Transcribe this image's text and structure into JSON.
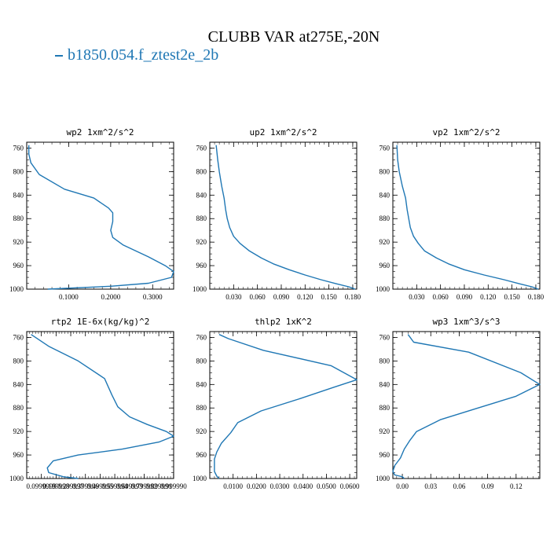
{
  "title": "CLUBB VAR at275E,-20N",
  "legend": {
    "label": "b1850.054.f_ztest2e_2b",
    "color": "#1f77b4"
  },
  "chart_data": [
    {
      "type": "line",
      "title": "wp2  1xm^2/s^2",
      "ylim": [
        1000,
        750
      ],
      "yticks": [
        "760",
        "800",
        "840",
        "880",
        "920",
        "960",
        "1000"
      ],
      "ytick_values": [
        760,
        800,
        840,
        880,
        920,
        960,
        1000
      ],
      "xlim": [
        0.0,
        0.35
      ],
      "xtick_values": [
        0.1,
        0.2,
        0.3
      ],
      "xticks": [
        "0.1000",
        "0.2000",
        "0.3000"
      ],
      "x": [
        0.005,
        0.005,
        0.01,
        0.03,
        0.09,
        0.16,
        0.195,
        0.205,
        0.205,
        0.2,
        0.205,
        0.23,
        0.29,
        0.33,
        0.35,
        0.345,
        0.29,
        0.2,
        0.05
      ],
      "y": [
        755,
        770,
        785,
        805,
        830,
        845,
        862,
        870,
        885,
        900,
        912,
        925,
        945,
        960,
        970,
        980,
        990,
        995,
        1000
      ],
      "color": "#1f77b4"
    },
    {
      "type": "line",
      "title": "up2  1xm^2/s^2",
      "ylim": [
        1000,
        750
      ],
      "yticks": [
        "760",
        "800",
        "840",
        "880",
        "920",
        "960",
        "1000"
      ],
      "ytick_values": [
        760,
        800,
        840,
        880,
        920,
        960,
        1000
      ],
      "xlim": [
        0.0,
        0.185
      ],
      "xtick_values": [
        0.03,
        0.06,
        0.09,
        0.12,
        0.15,
        0.18
      ],
      "xticks": [
        "0.030",
        "0.060",
        "0.090",
        "0.120",
        "0.150",
        "0.180"
      ],
      "x": [
        0.008,
        0.01,
        0.012,
        0.015,
        0.018,
        0.02,
        0.022,
        0.025,
        0.03,
        0.038,
        0.05,
        0.065,
        0.08,
        0.1,
        0.12,
        0.14,
        0.16,
        0.175,
        0.183
      ],
      "y": [
        755,
        780,
        800,
        825,
        845,
        865,
        880,
        895,
        910,
        922,
        935,
        947,
        957,
        967,
        976,
        984,
        991,
        996,
        1000
      ],
      "color": "#1f77b4"
    },
    {
      "type": "line",
      "title": "vp2  1xm^2/s^2",
      "ylim": [
        1000,
        750
      ],
      "yticks": [
        "760",
        "800",
        "840",
        "880",
        "920",
        "960",
        "1000"
      ],
      "ytick_values": [
        760,
        800,
        840,
        880,
        920,
        960,
        1000
      ],
      "xlim": [
        0.0,
        0.185
      ],
      "xtick_values": [
        0.03,
        0.06,
        0.09,
        0.12,
        0.15,
        0.18
      ],
      "xticks": [
        "0.030",
        "0.060",
        "0.090",
        "0.120",
        "0.150",
        "0.180"
      ],
      "x": [
        0.005,
        0.006,
        0.008,
        0.012,
        0.016,
        0.018,
        0.02,
        0.022,
        0.026,
        0.032,
        0.04,
        0.055,
        0.07,
        0.09,
        0.115,
        0.14,
        0.16,
        0.175,
        0.183
      ],
      "y": [
        755,
        780,
        800,
        825,
        845,
        865,
        880,
        895,
        910,
        922,
        935,
        947,
        957,
        967,
        976,
        984,
        991,
        996,
        1000
      ],
      "color": "#1f77b4"
    },
    {
      "type": "line",
      "title": "rtp2  1E-6x(kg/kg)^2",
      "ylim": [
        1000,
        750
      ],
      "yticks": [
        "760",
        "800",
        "840",
        "880",
        "920",
        "960",
        "1000"
      ],
      "ytick_values": [
        760,
        800,
        840,
        880,
        920,
        960,
        1000
      ],
      "xlim": [
        0.0,
        1.0
      ],
      "xtick_values": [
        0.0999,
        0.1998,
        0.2997,
        0.3996,
        0.4995,
        0.5994,
        0.6993,
        0.7992,
        0.8991,
        0.999
      ],
      "xticks": [
        "0.0999999",
        "0.199998",
        "0.299997",
        "0.399996",
        "0.499995",
        "0.599994",
        "0.699993",
        "0.799992",
        "0.899991",
        "0.999990"
      ],
      "x": [
        0.03,
        0.15,
        0.35,
        0.53,
        0.58,
        0.62,
        0.7,
        0.82,
        0.95,
        1.0,
        0.9,
        0.65,
        0.35,
        0.18,
        0.14,
        0.15,
        0.25,
        0.35
      ],
      "y": [
        755,
        775,
        800,
        830,
        858,
        878,
        895,
        908,
        920,
        928,
        938,
        950,
        960,
        970,
        982,
        990,
        997,
        1000
      ],
      "color": "#1f77b4"
    },
    {
      "type": "line",
      "title": "thlp2  1xK^2",
      "ylim": [
        1000,
        750
      ],
      "yticks": [
        "760",
        "800",
        "840",
        "880",
        "920",
        "960",
        "1000"
      ],
      "ytick_values": [
        760,
        800,
        840,
        880,
        920,
        960,
        1000
      ],
      "xlim": [
        0.0,
        0.063
      ],
      "xtick_values": [
        0.01,
        0.02,
        0.03,
        0.04,
        0.05,
        0.06
      ],
      "xticks": [
        "0.0100",
        "0.0200",
        "0.0300",
        "0.0400",
        "0.0500",
        "0.0600"
      ],
      "x": [
        0.004,
        0.008,
        0.023,
        0.052,
        0.063,
        0.053,
        0.038,
        0.022,
        0.012,
        0.009,
        0.005,
        0.003,
        0.002,
        0.002,
        0.002,
        0.003,
        0.004
      ],
      "y": [
        755,
        762,
        782,
        808,
        832,
        845,
        865,
        885,
        905,
        922,
        940,
        955,
        967,
        978,
        988,
        996,
        1000
      ],
      "color": "#1f77b4"
    },
    {
      "type": "line",
      "title": "wp3  1xm^3/s^3",
      "ylim": [
        1000,
        750
      ],
      "yticks": [
        "760",
        "800",
        "840",
        "880",
        "920",
        "960",
        "1000"
      ],
      "ytick_values": [
        760,
        800,
        840,
        880,
        920,
        960,
        1000
      ],
      "xlim": [
        -0.01,
        0.145
      ],
      "xtick_values": [
        0.0,
        0.03,
        0.06,
        0.09,
        0.12
      ],
      "xticks": [
        "0.00",
        "0.03",
        "0.06",
        "0.09",
        "0.12"
      ],
      "x": [
        0.006,
        0.012,
        0.07,
        0.125,
        0.145,
        0.12,
        0.08,
        0.04,
        0.015,
        0.008,
        0.002,
        -0.002,
        -0.008,
        -0.01,
        -0.008,
        0.0,
        0.002
      ],
      "y": [
        755,
        768,
        785,
        820,
        840,
        860,
        880,
        900,
        920,
        935,
        950,
        965,
        978,
        988,
        994,
        997,
        1000
      ],
      "color": "#1f77b4"
    }
  ]
}
